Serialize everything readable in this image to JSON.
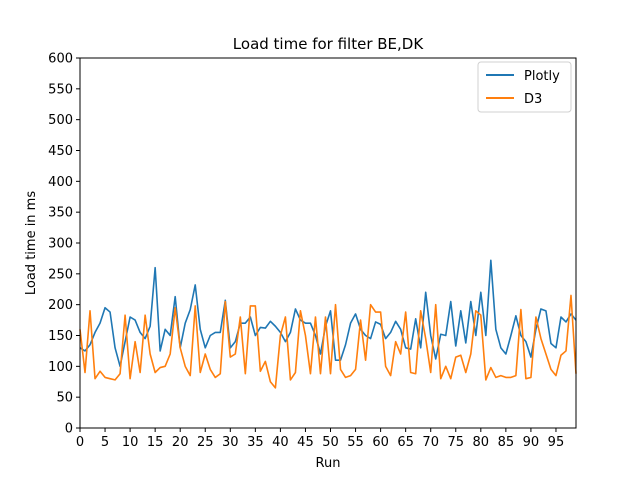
{
  "chart_data": {
    "type": "line",
    "title": "Load time for filter BE,DK",
    "xlabel": "Run",
    "ylabel": "Load time in ms",
    "xlim": [
      0,
      99
    ],
    "ylim": [
      0,
      600
    ],
    "xticks": [
      0,
      5,
      10,
      15,
      20,
      25,
      30,
      35,
      40,
      45,
      50,
      55,
      60,
      65,
      70,
      75,
      80,
      85,
      90,
      95
    ],
    "yticks": [
      0,
      50,
      100,
      150,
      200,
      250,
      300,
      350,
      400,
      450,
      500,
      550,
      600
    ],
    "grid": false,
    "legend_position": "top-right",
    "series": [
      {
        "name": "Plotly",
        "color": "#1f77b4",
        "values": [
          130,
          125,
          135,
          155,
          170,
          195,
          188,
          130,
          100,
          140,
          180,
          175,
          155,
          145,
          165,
          260,
          125,
          160,
          150,
          213,
          130,
          170,
          192,
          232,
          160,
          130,
          150,
          155,
          155,
          207,
          130,
          140,
          170,
          170,
          180,
          150,
          163,
          162,
          173,
          165,
          155,
          140,
          155,
          193,
          175,
          170,
          170,
          150,
          120,
          165,
          190,
          110,
          110,
          135,
          170,
          185,
          160,
          150,
          145,
          172,
          168,
          145,
          155,
          173,
          160,
          130,
          128,
          177,
          130,
          220,
          150,
          112,
          152,
          150,
          205,
          133,
          190,
          138,
          205,
          150,
          220,
          150,
          272,
          160,
          130,
          120,
          150,
          182,
          150,
          140,
          115,
          160,
          193,
          190,
          137,
          130,
          180,
          172,
          185,
          175
        ]
      },
      {
        "name": "D3",
        "color": "#ff7f0e",
        "values": [
          160,
          90,
          190,
          80,
          92,
          82,
          80,
          78,
          88,
          183,
          80,
          140,
          90,
          183,
          120,
          90,
          98,
          100,
          120,
          195,
          130,
          100,
          85,
          198,
          90,
          120,
          95,
          82,
          88,
          205,
          115,
          120,
          180,
          88,
          198,
          198,
          92,
          108,
          75,
          65,
          150,
          180,
          78,
          90,
          190,
          150,
          88,
          180,
          88,
          180,
          88,
          200,
          95,
          82,
          85,
          95,
          175,
          110,
          200,
          188,
          188,
          100,
          85,
          140,
          120,
          188,
          90,
          88,
          190,
          145,
          90,
          200,
          80,
          100,
          80,
          115,
          118,
          90,
          120,
          190,
          183,
          78,
          98,
          82,
          85,
          82,
          82,
          85,
          192,
          80,
          82,
          180,
          145,
          120,
          95,
          85,
          118,
          125,
          215,
          88
        ]
      }
    ]
  }
}
